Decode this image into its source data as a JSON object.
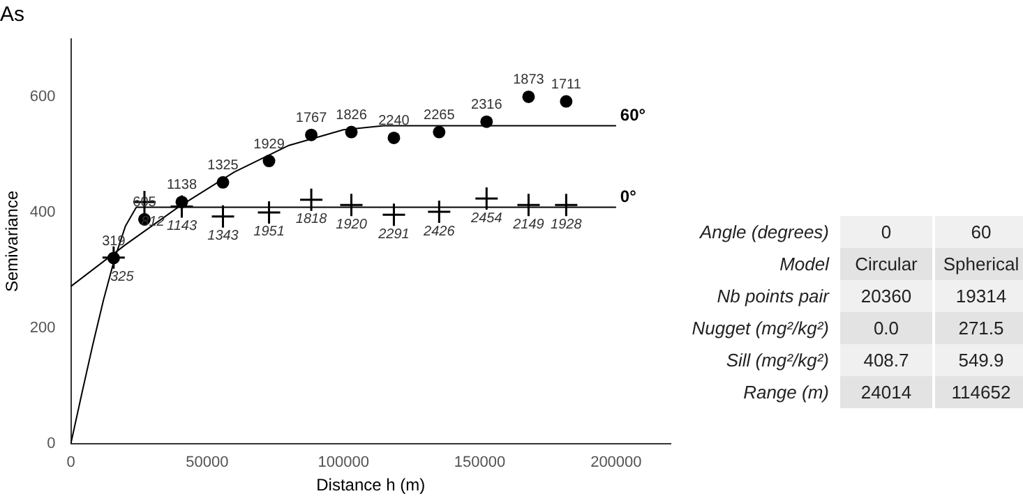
{
  "chart_data": [
    {
      "type": "scatter",
      "title": "As",
      "xlabel": "Distance h (m)",
      "ylabel": "Semivariance",
      "xlim": [
        0,
        220000
      ],
      "xticks": [
        0,
        50000,
        100000,
        150000,
        200000
      ],
      "ylim": [
        0,
        700
      ],
      "yticks": [
        0,
        200,
        400,
        600
      ],
      "grid": false,
      "legend": false,
      "series": [
        {
          "marker": "circle",
          "color": "#000000",
          "x": [
            15700,
            27000,
            40700,
            55800,
            72700,
            88200,
            102900,
            118500,
            135100,
            152500,
            167900,
            181700
          ],
          "values": [
            321,
            388,
            418,
            452,
            489,
            534,
            539,
            529,
            539,
            557,
            600,
            592
          ]
        },
        {
          "marker": "cross",
          "color": "#000000",
          "x": [
            15700,
            27000,
            40700,
            55800,
            72700,
            88200,
            102900,
            118500,
            135100,
            152500,
            167900,
            181700
          ],
          "values": [
            322,
            418,
            410,
            393,
            400,
            422,
            413,
            396,
            401,
            424,
            413,
            413
          ]
        },
        {
          "type": "line",
          "name": "60°",
          "marker": "none",
          "line_style": "solid",
          "color": "#000000",
          "x": [
            0,
            20000,
            40000,
            60000,
            80000,
            100000,
            114652,
            200000
          ],
          "values": [
            272,
            344,
            411,
            470,
            516,
            543,
            550,
            550
          ]
        },
        {
          "type": "line",
          "name": "0°",
          "marker": "none",
          "line_style": "solid",
          "color": "#000000",
          "x": [
            0,
            4000,
            8000,
            12000,
            16000,
            20000,
            24014,
            200000
          ],
          "values": [
            0,
            86,
            170,
            249,
            319,
            376,
            409,
            409
          ]
        }
      ],
      "annotations": [
        {
          "text": "319",
          "x": 15700,
          "y": 321
        },
        {
          "text": "605",
          "x": 27000,
          "y": 388
        },
        {
          "text": "1138",
          "x": 40700,
          "y": 418
        },
        {
          "text": "1325",
          "x": 55800,
          "y": 452
        },
        {
          "text": "1929",
          "x": 72700,
          "y": 489
        },
        {
          "text": "1767",
          "x": 88200,
          "y": 534
        },
        {
          "text": "1826",
          "x": 102900,
          "y": 539
        },
        {
          "text": "2240",
          "x": 118500,
          "y": 529
        },
        {
          "text": "2265",
          "x": 135100,
          "y": 539
        },
        {
          "text": "2316",
          "x": 152500,
          "y": 557
        },
        {
          "text": "1873",
          "x": 167900,
          "y": 600
        },
        {
          "text": "1711",
          "x": 181700,
          "y": 592
        },
        {
          "text": "325",
          "x": 15700,
          "y": 322
        },
        {
          "text": "812",
          "x": 27000,
          "y": 418
        },
        {
          "text": "1143",
          "x": 40700,
          "y": 410
        },
        {
          "text": "1343",
          "x": 55800,
          "y": 393
        },
        {
          "text": "1951",
          "x": 72700,
          "y": 400
        },
        {
          "text": "1818",
          "x": 88200,
          "y": 422
        },
        {
          "text": "1920",
          "x": 102900,
          "y": 413
        },
        {
          "text": "2291",
          "x": 118500,
          "y": 396
        },
        {
          "text": "2426",
          "x": 135100,
          "y": 401
        },
        {
          "text": "2454",
          "x": 152500,
          "y": 424
        },
        {
          "text": "2149",
          "x": 167900,
          "y": 413
        },
        {
          "text": "1928",
          "x": 181700,
          "y": 413
        }
      ]
    },
    {
      "type": "other",
      "annotations": [
        "Angle  (degrees)",
        "0",
        "60",
        "Model",
        "Circular",
        "Spherical",
        "Nb points pair",
        "20360",
        "19314",
        "Nugget (mg²/kg²)",
        "0.0",
        "271.5",
        "Sill (mg²/kg²)",
        "408.7",
        "549.9",
        "Range (m)",
        "24014",
        "114652"
      ]
    }
  ]
}
